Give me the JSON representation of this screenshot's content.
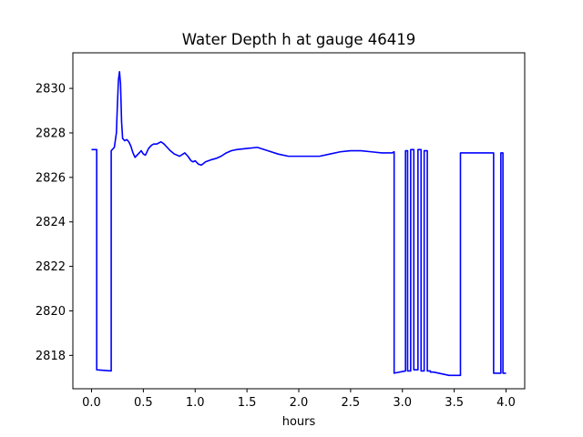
{
  "chart_data": {
    "type": "line",
    "title": "Water Depth h at gauge 46419",
    "xlabel": "hours",
    "ylabel": "",
    "xlim": [
      -0.18,
      4.18
    ],
    "ylim": [
      2816.5,
      2831.6
    ],
    "xticks": [
      0.0,
      0.5,
      1.0,
      1.5,
      2.0,
      2.5,
      3.0,
      3.5,
      4.0
    ],
    "xtick_labels": [
      "0.0",
      "0.5",
      "1.0",
      "1.5",
      "2.0",
      "2.5",
      "3.0",
      "3.5",
      "4.0"
    ],
    "yticks": [
      2818,
      2820,
      2822,
      2824,
      2826,
      2828,
      2830
    ],
    "ytick_labels": [
      "2818",
      "2820",
      "2822",
      "2824",
      "2826",
      "2828",
      "2830"
    ],
    "grid": false,
    "series": [
      {
        "color": "#0000ff",
        "x": [
          0.0,
          0.05,
          0.05,
          0.19,
          0.19,
          0.22,
          0.24,
          0.25,
          0.26,
          0.27,
          0.28,
          0.29,
          0.3,
          0.32,
          0.34,
          0.36,
          0.38,
          0.4,
          0.42,
          0.45,
          0.48,
          0.5,
          0.52,
          0.55,
          0.58,
          0.6,
          0.63,
          0.67,
          0.7,
          0.73,
          0.76,
          0.8,
          0.85,
          0.9,
          0.93,
          0.96,
          0.98,
          1.0,
          1.03,
          1.06,
          1.1,
          1.13,
          1.16,
          1.2,
          1.25,
          1.3,
          1.35,
          1.4,
          1.5,
          1.6,
          1.7,
          1.8,
          1.9,
          2.0,
          2.1,
          2.2,
          2.3,
          2.4,
          2.5,
          2.6,
          2.7,
          2.8,
          2.9,
          2.92,
          2.92,
          3.03,
          3.03,
          3.05,
          3.05,
          3.08,
          3.08,
          3.11,
          3.11,
          3.15,
          3.15,
          3.18,
          3.18,
          3.21,
          3.21,
          3.24,
          3.24,
          3.27,
          3.27,
          3.3,
          3.45,
          3.56,
          3.56,
          3.7,
          3.88,
          3.88,
          3.95,
          3.95,
          3.97,
          3.97,
          4.0
        ],
        "y": [
          2827.25,
          2827.25,
          2817.35,
          2817.3,
          2827.2,
          2827.35,
          2828.0,
          2829.3,
          2830.4,
          2830.75,
          2830.2,
          2828.5,
          2827.75,
          2827.65,
          2827.7,
          2827.6,
          2827.4,
          2827.1,
          2826.9,
          2827.05,
          2827.2,
          2827.05,
          2827.0,
          2827.3,
          2827.45,
          2827.5,
          2827.5,
          2827.6,
          2827.5,
          2827.35,
          2827.2,
          2827.05,
          2826.95,
          2827.1,
          2826.95,
          2826.75,
          2826.7,
          2826.75,
          2826.6,
          2826.55,
          2826.7,
          2826.75,
          2826.8,
          2826.85,
          2826.95,
          2827.1,
          2827.2,
          2827.25,
          2827.3,
          2827.35,
          2827.2,
          2827.05,
          2826.95,
          2826.95,
          2826.95,
          2826.95,
          2827.05,
          2827.15,
          2827.2,
          2827.2,
          2827.15,
          2827.1,
          2827.1,
          2827.15,
          2817.2,
          2817.3,
          2827.2,
          2827.2,
          2817.3,
          2817.3,
          2827.25,
          2827.25,
          2817.35,
          2817.35,
          2827.25,
          2827.25,
          2817.3,
          2817.3,
          2827.2,
          2827.2,
          2817.3,
          2817.3,
          2817.25,
          2817.25,
          2817.1,
          2817.1,
          2827.1,
          2827.1,
          2827.1,
          2817.2,
          2817.2,
          2827.1,
          2827.1,
          2817.2,
          2817.2
        ]
      }
    ]
  }
}
